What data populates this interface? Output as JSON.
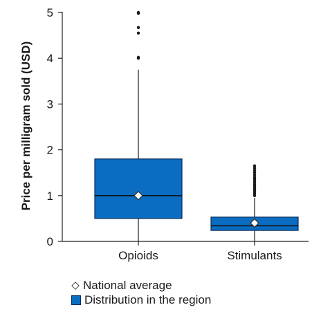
{
  "chart_data": {
    "type": "box",
    "ylabel": "Price per milligram sold (USD)",
    "xlabel": "",
    "ylim": [
      0,
      5
    ],
    "yticks": [
      "0",
      "1",
      "2",
      "3",
      "4",
      "5"
    ],
    "categories": [
      "Opioids",
      "Stimulants"
    ],
    "boxes": [
      {
        "category": "Opioids",
        "q1": 0.5,
        "median": 1.0,
        "q3": 1.8,
        "whisker_low": 0.0,
        "whisker_high": 3.75,
        "national_average": 1.0,
        "outliers": [
          4.0,
          4.02,
          4.55,
          4.67,
          4.98,
          5.0
        ]
      },
      {
        "category": "Stimulants",
        "q1": 0.24,
        "median": 0.34,
        "q3": 0.53,
        "whisker_low": 0.0,
        "whisker_high": 0.95,
        "national_average": 0.4,
        "outliers": [
          1.0,
          1.04,
          1.08,
          1.12,
          1.16,
          1.2,
          1.24,
          1.28,
          1.32,
          1.36,
          1.4,
          1.45,
          1.5,
          1.55,
          1.6,
          1.65
        ]
      }
    ],
    "legend": {
      "position": "bottom-left",
      "entries": [
        {
          "symbol": "diamond",
          "label": "National average"
        },
        {
          "symbol": "box",
          "label": "Distribution in the region"
        }
      ]
    },
    "colors": {
      "box_fill": "#0a6dc2",
      "box_stroke": "#0a2c5a",
      "axis": "#222222",
      "marker_fill": "#ffffff"
    },
    "grid": false
  },
  "legend_labels": {
    "diamond_symbol": "◇",
    "national_average": "National average",
    "distribution": "Distribution in the region"
  }
}
